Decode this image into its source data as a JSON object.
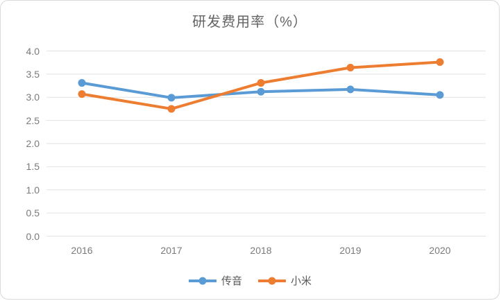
{
  "chart_data": {
    "type": "line",
    "title": "研发费用率（%）",
    "categories": [
      "2016",
      "2017",
      "2018",
      "2019",
      "2020"
    ],
    "series": [
      {
        "name": "传音",
        "color": "#5b9bd5",
        "values": [
          3.31,
          2.99,
          3.12,
          3.17,
          3.05
        ]
      },
      {
        "name": "小米",
        "color": "#ed7d31",
        "values": [
          3.07,
          2.75,
          3.31,
          3.64,
          3.76
        ]
      }
    ],
    "ylim": [
      0.0,
      4.0
    ],
    "ytick_step": 0.5,
    "yticks": [
      "0.0",
      "0.5",
      "1.0",
      "1.5",
      "2.0",
      "2.5",
      "3.0",
      "3.5",
      "4.0"
    ],
    "xlabel": "",
    "ylabel": "",
    "grid": true,
    "gridline_color": "#e2e2e2",
    "legend_position": "bottom"
  }
}
